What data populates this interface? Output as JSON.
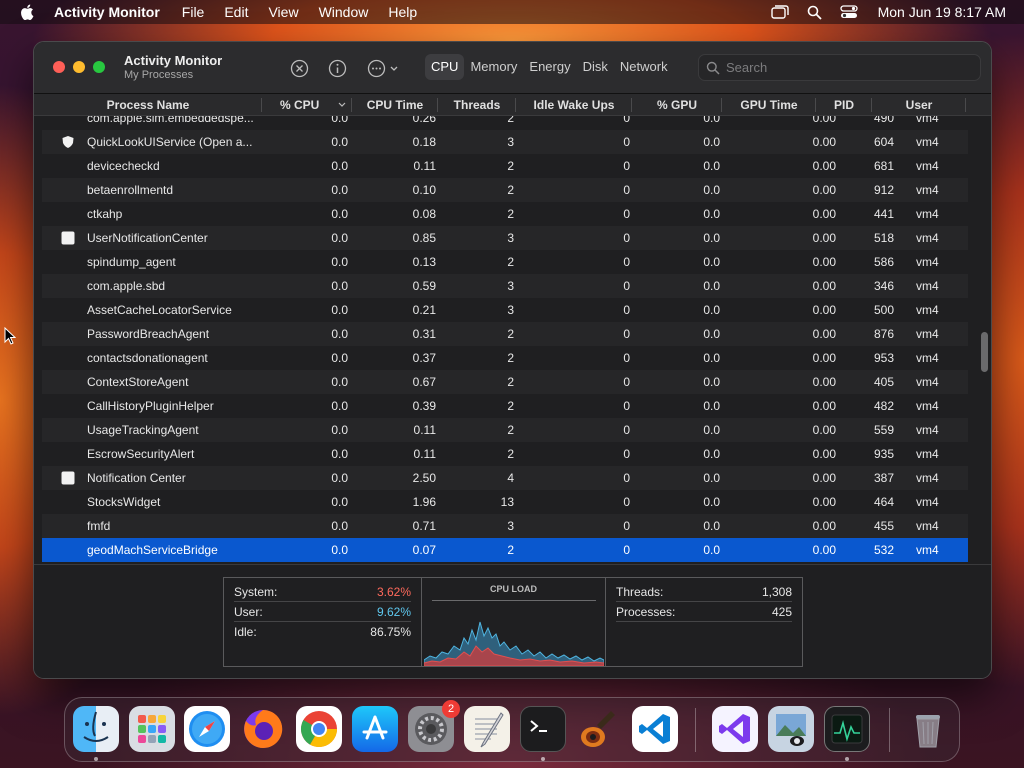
{
  "menubar": {
    "app_name": "Activity Monitor",
    "items": [
      "File",
      "Edit",
      "View",
      "Window",
      "Help"
    ],
    "clock": "Mon Jun 19  8:17 AM"
  },
  "window": {
    "title": "Activity Monitor",
    "subtitle": "My Processes",
    "tabs": [
      "CPU",
      "Memory",
      "Energy",
      "Disk",
      "Network"
    ],
    "active_tab": "CPU",
    "search_placeholder": "Search"
  },
  "table": {
    "columns": [
      "Process Name",
      "% CPU",
      "CPU Time",
      "Threads",
      "Idle Wake Ups",
      "% GPU",
      "GPU Time",
      "PID",
      "User"
    ],
    "sort_column": "% CPU",
    "rows": [
      {
        "name": "com.apple.sim.embeddedspe...",
        "cpu": "0.0",
        "cpu_time": "0.26",
        "threads": "2",
        "idle": "0",
        "gpu": "0.0",
        "gpu_time": "0.00",
        "pid": "490",
        "user": "vm4",
        "icon": ""
      },
      {
        "name": "QuickLookUIService (Open a...",
        "cpu": "0.0",
        "cpu_time": "0.18",
        "threads": "3",
        "idle": "0",
        "gpu": "0.0",
        "gpu_time": "0.00",
        "pid": "604",
        "user": "vm4",
        "icon": "shield-icon"
      },
      {
        "name": "devicecheckd",
        "cpu": "0.0",
        "cpu_time": "0.11",
        "threads": "2",
        "idle": "0",
        "gpu": "0.0",
        "gpu_time": "0.00",
        "pid": "681",
        "user": "vm4",
        "icon": ""
      },
      {
        "name": "betaenrollmentd",
        "cpu": "0.0",
        "cpu_time": "0.10",
        "threads": "2",
        "idle": "0",
        "gpu": "0.0",
        "gpu_time": "0.00",
        "pid": "912",
        "user": "vm4",
        "icon": ""
      },
      {
        "name": "ctkahp",
        "cpu": "0.0",
        "cpu_time": "0.08",
        "threads": "2",
        "idle": "0",
        "gpu": "0.0",
        "gpu_time": "0.00",
        "pid": "441",
        "user": "vm4",
        "icon": ""
      },
      {
        "name": "UserNotificationCenter",
        "cpu": "0.0",
        "cpu_time": "0.85",
        "threads": "3",
        "idle": "0",
        "gpu": "0.0",
        "gpu_time": "0.00",
        "pid": "518",
        "user": "vm4",
        "icon": "app-window-icon"
      },
      {
        "name": "spindump_agent",
        "cpu": "0.0",
        "cpu_time": "0.13",
        "threads": "2",
        "idle": "0",
        "gpu": "0.0",
        "gpu_time": "0.00",
        "pid": "586",
        "user": "vm4",
        "icon": ""
      },
      {
        "name": "com.apple.sbd",
        "cpu": "0.0",
        "cpu_time": "0.59",
        "threads": "3",
        "idle": "0",
        "gpu": "0.0",
        "gpu_time": "0.00",
        "pid": "346",
        "user": "vm4",
        "icon": ""
      },
      {
        "name": "AssetCacheLocatorService",
        "cpu": "0.0",
        "cpu_time": "0.21",
        "threads": "3",
        "idle": "0",
        "gpu": "0.0",
        "gpu_time": "0.00",
        "pid": "500",
        "user": "vm4",
        "icon": ""
      },
      {
        "name": "PasswordBreachAgent",
        "cpu": "0.0",
        "cpu_time": "0.31",
        "threads": "2",
        "idle": "0",
        "gpu": "0.0",
        "gpu_time": "0.00",
        "pid": "876",
        "user": "vm4",
        "icon": ""
      },
      {
        "name": "contactsdonationagent",
        "cpu": "0.0",
        "cpu_time": "0.37",
        "threads": "2",
        "idle": "0",
        "gpu": "0.0",
        "gpu_time": "0.00",
        "pid": "953",
        "user": "vm4",
        "icon": ""
      },
      {
        "name": "ContextStoreAgent",
        "cpu": "0.0",
        "cpu_time": "0.67",
        "threads": "2",
        "idle": "0",
        "gpu": "0.0",
        "gpu_time": "0.00",
        "pid": "405",
        "user": "vm4",
        "icon": ""
      },
      {
        "name": "CallHistoryPluginHelper",
        "cpu": "0.0",
        "cpu_time": "0.39",
        "threads": "2",
        "idle": "0",
        "gpu": "0.0",
        "gpu_time": "0.00",
        "pid": "482",
        "user": "vm4",
        "icon": ""
      },
      {
        "name": "UsageTrackingAgent",
        "cpu": "0.0",
        "cpu_time": "0.11",
        "threads": "2",
        "idle": "0",
        "gpu": "0.0",
        "gpu_time": "0.00",
        "pid": "559",
        "user": "vm4",
        "icon": ""
      },
      {
        "name": "EscrowSecurityAlert",
        "cpu": "0.0",
        "cpu_time": "0.11",
        "threads": "2",
        "idle": "0",
        "gpu": "0.0",
        "gpu_time": "0.00",
        "pid": "935",
        "user": "vm4",
        "icon": ""
      },
      {
        "name": "Notification Center",
        "cpu": "0.0",
        "cpu_time": "2.50",
        "threads": "4",
        "idle": "0",
        "gpu": "0.0",
        "gpu_time": "0.00",
        "pid": "387",
        "user": "vm4",
        "icon": "app-window-icon"
      },
      {
        "name": "StocksWidget",
        "cpu": "0.0",
        "cpu_time": "1.96",
        "threads": "13",
        "idle": "0",
        "gpu": "0.0",
        "gpu_time": "0.00",
        "pid": "464",
        "user": "vm4",
        "icon": ""
      },
      {
        "name": "fmfd",
        "cpu": "0.0",
        "cpu_time": "0.71",
        "threads": "3",
        "idle": "0",
        "gpu": "0.0",
        "gpu_time": "0.00",
        "pid": "455",
        "user": "vm4",
        "icon": ""
      },
      {
        "name": "geodMachServiceBridge",
        "cpu": "0.0",
        "cpu_time": "0.07",
        "threads": "2",
        "idle": "0",
        "gpu": "0.0",
        "gpu_time": "0.00",
        "pid": "532",
        "user": "vm4",
        "icon": "",
        "selected": true
      }
    ]
  },
  "summary": {
    "system_label": "System:",
    "system_value": "3.62%",
    "user_label": "User:",
    "user_value": "9.62%",
    "idle_label": "Idle:",
    "idle_value": "86.75%",
    "cpu_load_title": "CPU LOAD",
    "threads_label": "Threads:",
    "threads_value": "1,308",
    "processes_label": "Processes:",
    "processes_value": "425"
  },
  "dock": {
    "items": [
      "finder-icon",
      "launchpad-icon",
      "safari-icon",
      "firefox-icon",
      "chrome-icon",
      "app-store-icon",
      "system-settings-icon",
      "textedit-icon",
      "terminal-icon",
      "garageband-icon",
      "vscode-icon",
      "visual-studio-icon",
      "preview-icon",
      "activity-monitor-icon",
      "trash-icon"
    ],
    "settings_badge": "2"
  },
  "colors": {
    "selection": "#0a58cf",
    "system_value": "#ff6a5c",
    "user_value": "#5ec8ef",
    "close": "#fe5f57",
    "minimize": "#febc2e",
    "zoom": "#28c840"
  }
}
